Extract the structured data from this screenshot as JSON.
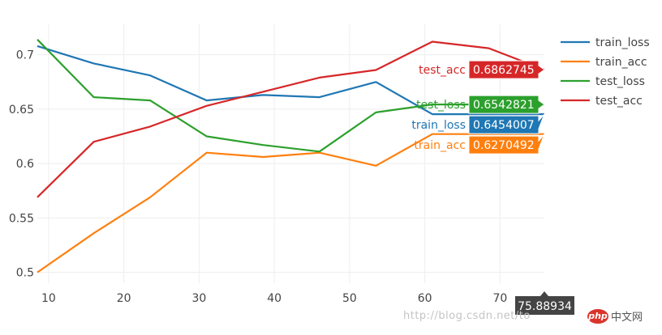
{
  "chart_data": {
    "type": "line",
    "title": "",
    "xlabel": "",
    "ylabel": "",
    "xlim": [
      8.5,
      75.88934
    ],
    "ylim": [
      0.49,
      0.728
    ],
    "x_ticks": [
      10,
      20,
      30,
      40,
      50,
      60,
      70
    ],
    "y_ticks": [
      0.5,
      0.55,
      0.6,
      0.65,
      0.7
    ],
    "y_tick_labels": [
      "0.5",
      "0.55",
      "0.6",
      "0.65",
      "0.7"
    ],
    "grid": true,
    "legend_position": "top-right",
    "x": [
      8.5,
      16,
      23.5,
      31,
      38.5,
      46,
      53.5,
      61,
      68.5,
      75.88934
    ],
    "series": [
      {
        "name": "train_loss",
        "color": "#1f77b4",
        "values": [
          0.708,
          0.692,
          0.681,
          0.658,
          0.663,
          0.661,
          0.675,
          0.6454007,
          0.6454007,
          0.6454007
        ]
      },
      {
        "name": "train_acc",
        "color": "#ff7f0e",
        "values": [
          0.5,
          0.536,
          0.569,
          0.61,
          0.606,
          0.61,
          0.598,
          0.6270492,
          0.6270492,
          0.6270492
        ]
      },
      {
        "name": "test_loss",
        "color": "#2ca02c",
        "values": [
          0.714,
          0.661,
          0.658,
          0.625,
          0.617,
          0.611,
          0.647,
          0.6542821,
          0.6542821,
          0.6542821
        ]
      },
      {
        "name": "test_acc",
        "color": "#d62728",
        "values": [
          0.569,
          0.62,
          0.634,
          0.653,
          0.666,
          0.679,
          0.686,
          0.712,
          0.706,
          0.6862745
        ]
      }
    ],
    "hover": {
      "x_value": "75.88934",
      "items": [
        {
          "name": "test_acc",
          "value": "0.6862745",
          "color": "#d62728"
        },
        {
          "name": "test_loss",
          "value": "0.6542821",
          "color": "#2ca02c"
        },
        {
          "name": "train_loss",
          "value": "0.6454007",
          "color": "#1f77b4"
        },
        {
          "name": "train_acc",
          "value": "0.6270492",
          "color": "#ff7f0e"
        }
      ]
    }
  },
  "watermark": {
    "url_text": "http://blog.csdn.net/to",
    "logo_badge": "php",
    "logo_text": "中文网"
  }
}
